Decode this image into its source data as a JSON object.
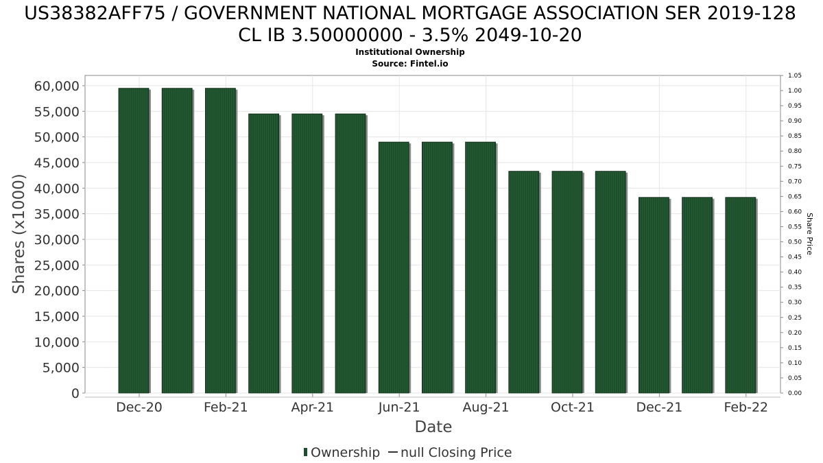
{
  "chart_data": {
    "type": "bar",
    "title_lines": [
      "US38382AFF75 / GOVERNMENT NATIONAL MORTGAGE ASSOCIATION SER 2019-128",
      "CL IB 3.50000000 - 3.5% 2049-10-20"
    ],
    "subtitle_lines": [
      "Institutional Ownership",
      "Source: Fintel.io"
    ],
    "xlabel": "Date",
    "ylabel": "Shares (x1000)",
    "y2label": "Share Price",
    "ylim": [
      0,
      62000
    ],
    "y_ticks": [
      0,
      5000,
      10000,
      15000,
      20000,
      25000,
      30000,
      35000,
      40000,
      45000,
      50000,
      55000,
      60000
    ],
    "y_tick_labels": [
      "0",
      "5,000",
      "10,000",
      "15,000",
      "20,000",
      "25,000",
      "30,000",
      "35,000",
      "40,000",
      "45,000",
      "50,000",
      "55,000",
      "60,000"
    ],
    "y2lim": [
      0,
      1.05
    ],
    "y2_ticks": [
      "0.00",
      "0.05",
      "0.10",
      "0.15",
      "0.20",
      "0.25",
      "0.30",
      "0.35",
      "0.40",
      "0.45",
      "0.50",
      "0.55",
      "0.60",
      "0.65",
      "0.70",
      "0.75",
      "0.80",
      "0.85",
      "0.90",
      "0.95",
      "1.00",
      "1.05"
    ],
    "x_tick_labels": [
      "Dec-20",
      "Feb-21",
      "Apr-21",
      "Jun-21",
      "Aug-21",
      "Oct-21",
      "Dec-21",
      "Feb-22"
    ],
    "series": [
      {
        "name": "Ownership",
        "color": "#1e4d2b",
        "values": [
          59500,
          59500,
          59500,
          54500,
          54500,
          54500,
          49000,
          49000,
          49000,
          43300,
          43300,
          43300,
          38200,
          38200,
          38200
        ]
      }
    ],
    "legend": {
      "placement": "bottom",
      "entries": [
        "Ownership",
        "null Closing Price"
      ]
    },
    "grid": true
  }
}
